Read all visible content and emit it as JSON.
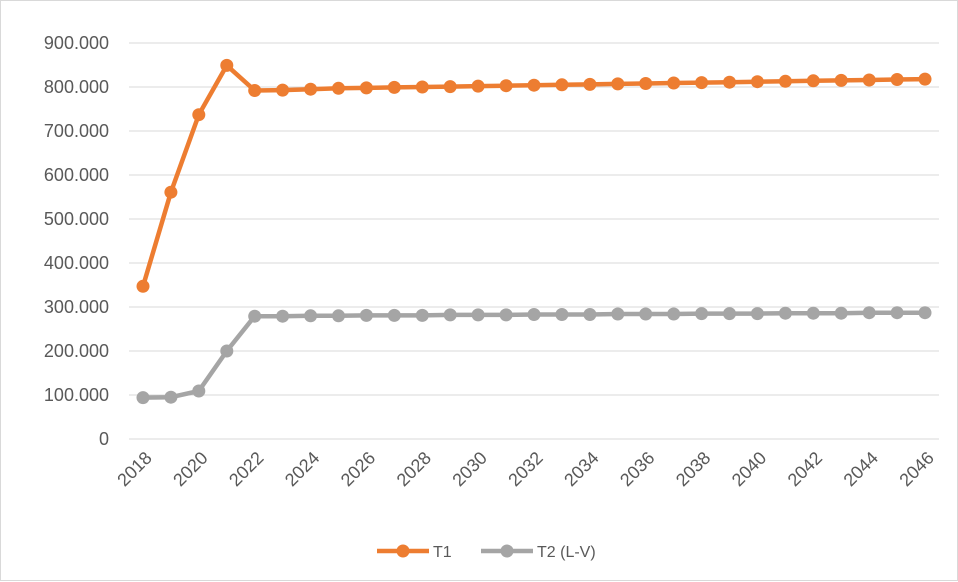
{
  "chart_data": {
    "type": "line",
    "x": [
      2018,
      2019,
      2020,
      2021,
      2022,
      2023,
      2024,
      2025,
      2026,
      2027,
      2028,
      2029,
      2030,
      2031,
      2032,
      2033,
      2034,
      2035,
      2036,
      2037,
      2038,
      2039,
      2040,
      2041,
      2042,
      2043,
      2044,
      2045,
      2046
    ],
    "x_tick_labels": [
      "2018",
      "2020",
      "2022",
      "2024",
      "2026",
      "2028",
      "2030",
      "2032",
      "2034",
      "2036",
      "2038",
      "2040",
      "2042",
      "2044",
      "2046"
    ],
    "y_tick_labels": [
      "0",
      "100.000",
      "200.000",
      "300.000",
      "400.000",
      "500.000",
      "600.000",
      "700.000",
      "800.000",
      "900.000"
    ],
    "ylim": [
      0,
      900000
    ],
    "grid": true,
    "legend_position": "bottom",
    "series": [
      {
        "name": "T1",
        "color": "#ED7D31",
        "values": [
          347000,
          561000,
          737000,
          849000,
          792000,
          793000,
          795000,
          797000,
          798000,
          799000,
          800000,
          801000,
          802000,
          803000,
          804000,
          805000,
          806000,
          807000,
          808000,
          809000,
          810000,
          811000,
          812000,
          813000,
          814000,
          815000,
          816000,
          817000,
          818000
        ]
      },
      {
        "name": "T2 (L-V)",
        "color": "#A5A5A5",
        "values": [
          94000,
          95000,
          109000,
          200000,
          279000,
          279000,
          280000,
          280000,
          281000,
          281000,
          281000,
          282000,
          282000,
          282000,
          283000,
          283000,
          283000,
          284000,
          284000,
          284000,
          285000,
          285000,
          285000,
          286000,
          286000,
          286000,
          287000,
          287000,
          287000
        ]
      }
    ]
  }
}
